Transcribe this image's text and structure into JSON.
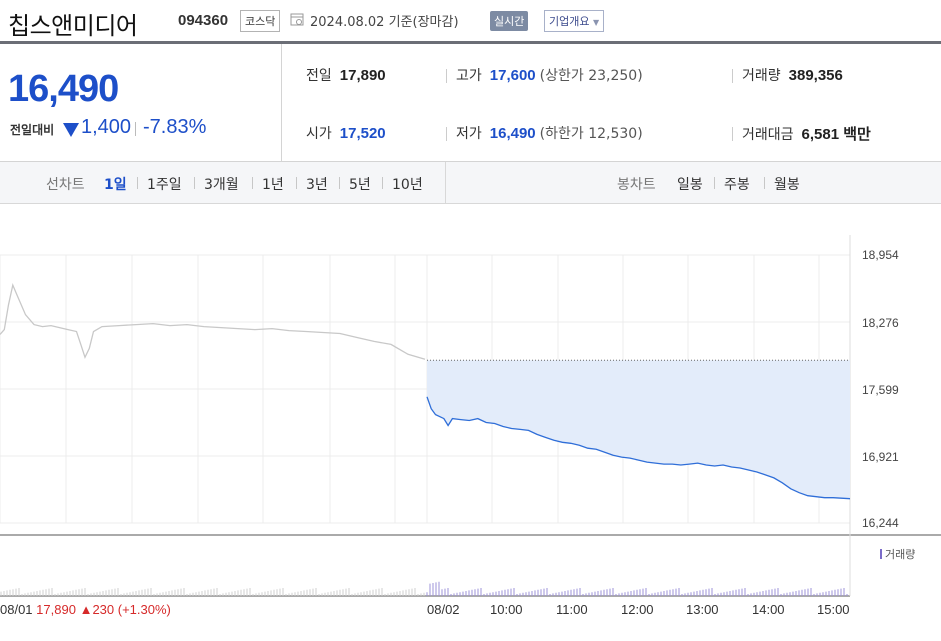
{
  "header": {
    "company": "칩스앤미디어",
    "code": "094360",
    "market": "코스닥",
    "date": "2024.08.02",
    "basis": "기준(장마감)",
    "realtime": "실시간",
    "overview": "기업개요"
  },
  "price": {
    "current": "16,490",
    "diff_label": "전일대비",
    "diff_amount": "1,400",
    "diff_percent": "-7.83%",
    "direction_icon": "down-triangle-icon",
    "color": "#1d4fc9"
  },
  "stats": {
    "prev_close": {
      "label": "전일",
      "value": "17,890"
    },
    "open": {
      "label": "시가",
      "value": "17,520"
    },
    "high": {
      "label": "고가",
      "value": "17,600",
      "sub": "(상한가 23,250)"
    },
    "low": {
      "label": "저가",
      "value": "16,490",
      "sub": "(하한가 12,530)"
    },
    "volume": {
      "label": "거래량",
      "value": "389,356"
    },
    "amount": {
      "label": "거래대금",
      "value": "6,581 백만"
    }
  },
  "tabs": {
    "line_label": "선차트",
    "line_tabs": [
      "1일",
      "1주일",
      "3개월",
      "1년",
      "3년",
      "5년",
      "10년"
    ],
    "active": "1일",
    "candle_label": "봉차트",
    "candle_tabs": [
      "일봉",
      "주봉",
      "월봉"
    ]
  },
  "chart_data": {
    "type": "line",
    "y_ticks": [
      "18,954",
      "18,276",
      "17,599",
      "16,921",
      "16,244"
    ],
    "ylim": [
      16244,
      18954
    ],
    "x_ticks": [
      "08/01",
      "08/02",
      "10:00",
      "11:00",
      "12:00",
      "13:00",
      "14:00",
      "15:00"
    ],
    "prev_day": {
      "label": "08/01",
      "close": "17,890",
      "change": "230",
      "change_pct": "(+1.30%)",
      "color": "#d62a2a"
    },
    "reference_line": 17890,
    "series": [
      {
        "day": "08/01",
        "color": "#c8c8c8",
        "points": [
          [
            0,
            18150
          ],
          [
            0.05,
            18200
          ],
          [
            0.1,
            18450
          ],
          [
            0.15,
            18650
          ],
          [
            0.2,
            18550
          ],
          [
            0.3,
            18350
          ],
          [
            0.4,
            18250
          ],
          [
            0.5,
            18230
          ],
          [
            0.6,
            18240
          ],
          [
            0.7,
            18220
          ],
          [
            0.8,
            18200
          ],
          [
            0.9,
            18180
          ],
          [
            0.95,
            18050
          ],
          [
            1.0,
            17920
          ],
          [
            1.05,
            18010
          ],
          [
            1.1,
            18180
          ],
          [
            1.2,
            18230
          ],
          [
            1.4,
            18240
          ],
          [
            1.6,
            18250
          ],
          [
            1.8,
            18260
          ],
          [
            2.0,
            18240
          ],
          [
            2.2,
            18250
          ],
          [
            2.4,
            18230
          ],
          [
            2.6,
            18220
          ],
          [
            2.8,
            18210
          ],
          [
            3.0,
            18200
          ],
          [
            3.2,
            18210
          ],
          [
            3.4,
            18190
          ],
          [
            3.6,
            18180
          ],
          [
            3.8,
            18170
          ],
          [
            4.0,
            18160
          ],
          [
            4.2,
            18120
          ],
          [
            4.4,
            18080
          ],
          [
            4.6,
            18050
          ],
          [
            4.8,
            17950
          ],
          [
            5.0,
            17900
          ]
        ]
      },
      {
        "day": "08/02",
        "color": "#2f6ed8",
        "fill": "#e3ecfa",
        "points": [
          [
            0,
            17520
          ],
          [
            0.05,
            17400
          ],
          [
            0.1,
            17340
          ],
          [
            0.2,
            17300
          ],
          [
            0.25,
            17230
          ],
          [
            0.3,
            17300
          ],
          [
            0.4,
            17290
          ],
          [
            0.5,
            17280
          ],
          [
            0.6,
            17300
          ],
          [
            0.7,
            17260
          ],
          [
            0.8,
            17250
          ],
          [
            0.9,
            17220
          ],
          [
            1.0,
            17200
          ],
          [
            1.1,
            17190
          ],
          [
            1.2,
            17180
          ],
          [
            1.3,
            17140
          ],
          [
            1.4,
            17110
          ],
          [
            1.5,
            17080
          ],
          [
            1.6,
            17060
          ],
          [
            1.7,
            17050
          ],
          [
            1.8,
            17030
          ],
          [
            1.9,
            17000
          ],
          [
            2.0,
            16990
          ],
          [
            2.1,
            16960
          ],
          [
            2.2,
            16930
          ],
          [
            2.3,
            16910
          ],
          [
            2.4,
            16900
          ],
          [
            2.5,
            16880
          ],
          [
            2.6,
            16860
          ],
          [
            2.7,
            16850
          ],
          [
            2.8,
            16840
          ],
          [
            2.9,
            16840
          ],
          [
            3.0,
            16830
          ],
          [
            3.1,
            16840
          ],
          [
            3.2,
            16850
          ],
          [
            3.3,
            16830
          ],
          [
            3.4,
            16820
          ],
          [
            3.5,
            16830
          ],
          [
            3.6,
            16810
          ],
          [
            3.7,
            16800
          ],
          [
            3.8,
            16780
          ],
          [
            3.9,
            16760
          ],
          [
            4.0,
            16730
          ],
          [
            4.1,
            16700
          ],
          [
            4.2,
            16650
          ],
          [
            4.3,
            16590
          ],
          [
            4.4,
            16550
          ],
          [
            4.5,
            16520
          ],
          [
            4.6,
            16510
          ],
          [
            4.7,
            16500
          ],
          [
            4.8,
            16500
          ],
          [
            4.9,
            16495
          ],
          [
            5.0,
            16490
          ]
        ]
      }
    ],
    "volume_legend": "거래량"
  }
}
